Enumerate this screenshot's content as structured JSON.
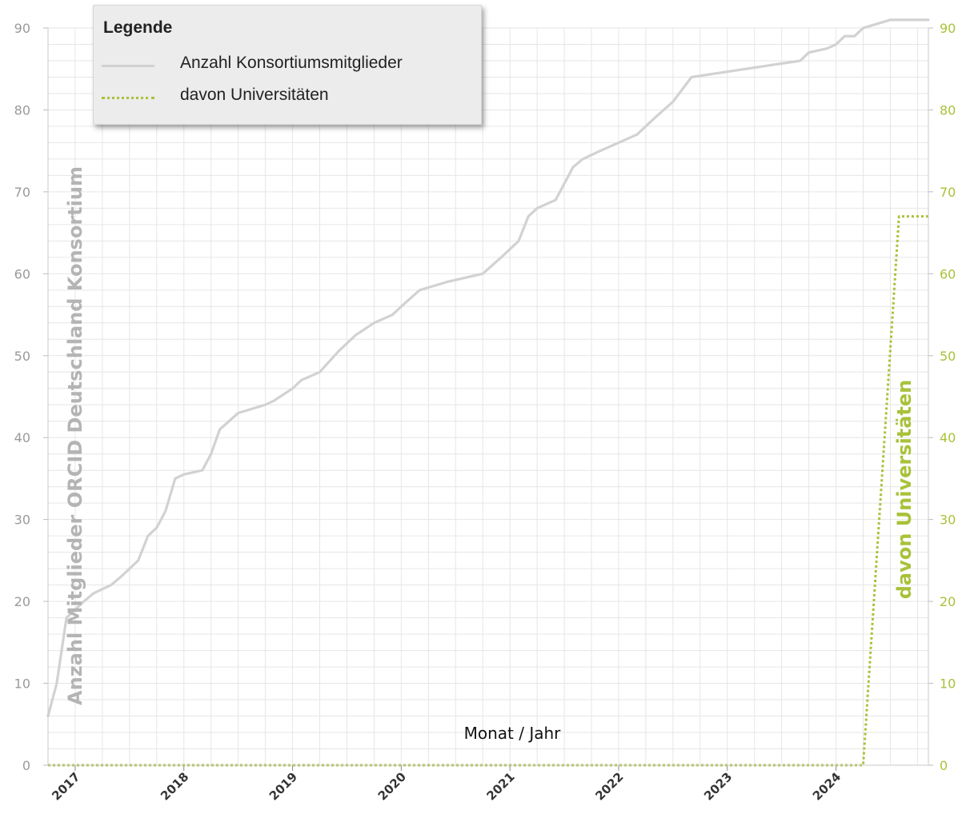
{
  "chart_data": {
    "type": "line",
    "title": "",
    "xlabel": "Monat / Jahr",
    "ylabel_left": "Anzahl Mitglieder ORCID Deutschland Konsortium",
    "ylabel_right": "davon Universitäten",
    "ylim": [
      0,
      90
    ],
    "yticks": [
      0,
      10,
      20,
      30,
      40,
      50,
      60,
      70,
      80,
      90
    ],
    "x_range": [
      2016.75,
      2024.85
    ],
    "xticks": [
      "2017",
      "2018",
      "2019",
      "2020",
      "2021",
      "2022",
      "2023",
      "2024"
    ],
    "grid": true,
    "legend": {
      "title": "Legende",
      "position": "top-left",
      "entries": [
        "Anzahl Konsortiumsmitglieder",
        "davon Universitäten"
      ]
    },
    "series": [
      {
        "name": "Anzahl Konsortiumsmitglieder",
        "color": "#d2d2d2",
        "style": "solid",
        "x": [
          2016.75,
          2016.83,
          2016.92,
          2017.0,
          2017.08,
          2017.17,
          2017.33,
          2017.42,
          2017.58,
          2017.67,
          2017.75,
          2017.83,
          2017.92,
          2018.0,
          2018.17,
          2018.25,
          2018.33,
          2018.5,
          2018.75,
          2018.83,
          2019.0,
          2019.08,
          2019.25,
          2019.42,
          2019.58,
          2019.75,
          2019.92,
          2020.0,
          2020.17,
          2020.42,
          2020.75,
          2020.92,
          2021.08,
          2021.17,
          2021.25,
          2021.42,
          2021.58,
          2021.67,
          2021.83,
          2022.0,
          2022.17,
          2022.33,
          2022.5,
          2022.67,
          2022.92,
          2023.17,
          2023.42,
          2023.67,
          2023.75,
          2023.92,
          2024.0,
          2024.08,
          2024.17,
          2024.25,
          2024.5,
          2024.75,
          2024.85
        ],
        "values": [
          6,
          10,
          18,
          19,
          20,
          21,
          22,
          23,
          25,
          28,
          29,
          31,
          35,
          35.5,
          36,
          38,
          41,
          43,
          44,
          44.5,
          46,
          47,
          48,
          50.5,
          52.5,
          54,
          55,
          56,
          58,
          59,
          60,
          62,
          64,
          67,
          68,
          69,
          73,
          74,
          75,
          76,
          77,
          79,
          81,
          84,
          84.5,
          85,
          85.5,
          86,
          87,
          87.5,
          88,
          89,
          89,
          90,
          91,
          91,
          91
        ]
      },
      {
        "name": "davon Universitäten",
        "color": "#a8c23a",
        "style": "dotted",
        "x": [
          2016.75,
          2024.0,
          2024.25,
          2024.58,
          2024.85
        ],
        "values": [
          0,
          0,
          0,
          67,
          67
        ]
      }
    ]
  }
}
